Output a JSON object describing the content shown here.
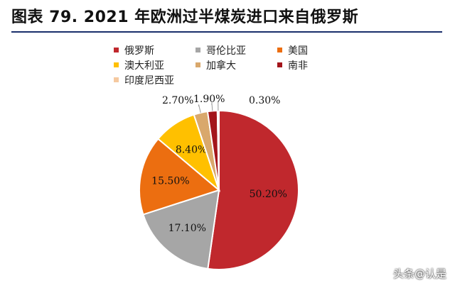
{
  "header": {
    "title": "图表 79. 2021 年欧洲过半煤炭进口来自俄罗斯"
  },
  "watermark": "头条@认是",
  "chart_data": {
    "type": "pie",
    "title": "图表 79. 2021 年欧洲过半煤炭进口来自俄罗斯",
    "legend_position": "top",
    "slices": [
      {
        "name": "俄罗斯",
        "value": 50.2,
        "label": "50.20%",
        "color": "#c0282d"
      },
      {
        "name": "哥伦比亚",
        "value": 17.1,
        "label": "17.10%",
        "color": "#a6a6a6"
      },
      {
        "name": "美国",
        "value": 15.5,
        "label": "15.50%",
        "color": "#ec6e10"
      },
      {
        "name": "澳大利亚",
        "value": 8.4,
        "label": "8.40%",
        "color": "#ffc000"
      },
      {
        "name": "加拿大",
        "value": 2.7,
        "label": "2.70%",
        "color": "#d9a86c"
      },
      {
        "name": "南非",
        "value": 1.9,
        "label": "1.90%",
        "color": "#a3151b"
      },
      {
        "name": "印度尼西亚",
        "value": 0.3,
        "label": "0.30%",
        "color": "#f5c9a0"
      }
    ]
  }
}
